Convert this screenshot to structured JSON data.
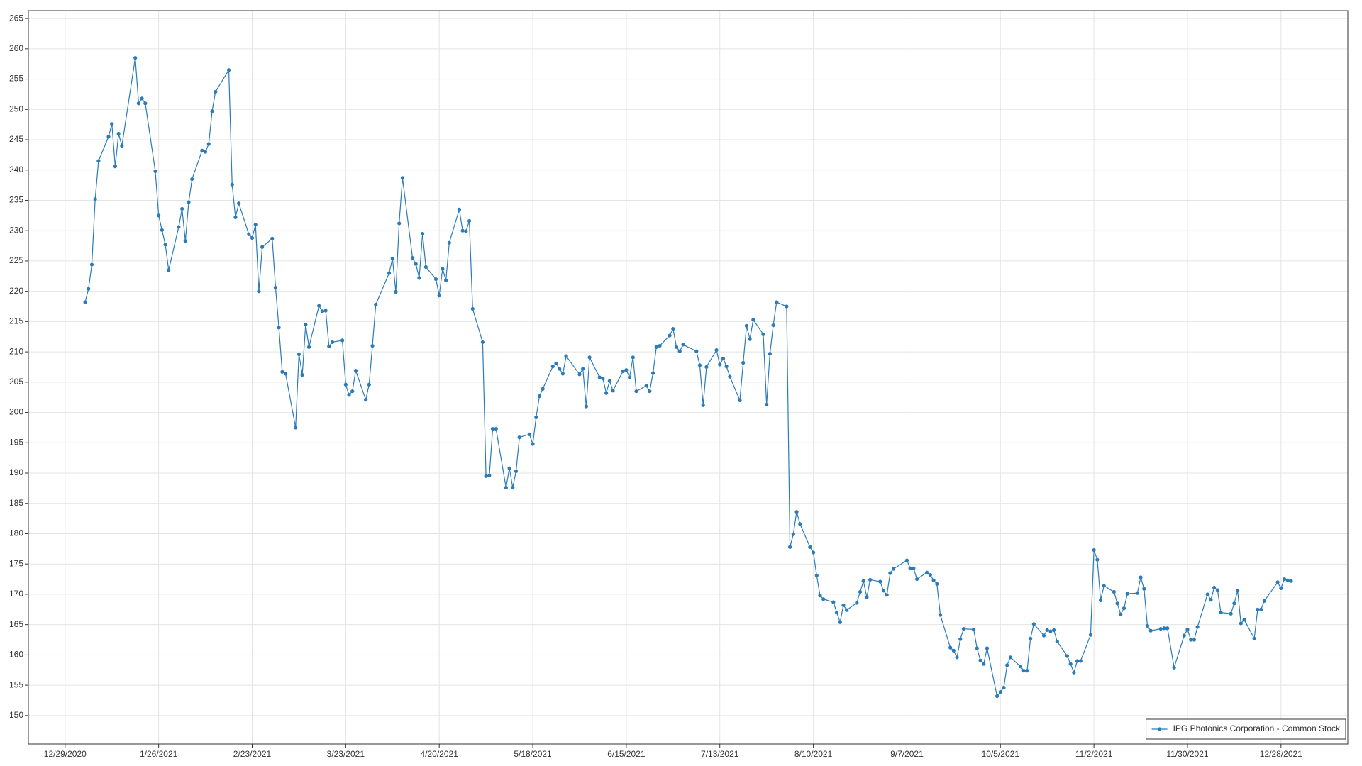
{
  "chart_data": {
    "type": "line",
    "x": [
      "1/4/2021",
      "1/5/2021",
      "1/6/2021",
      "1/7/2021",
      "1/8/2021",
      "1/11/2021",
      "1/12/2021",
      "1/13/2021",
      "1/14/2021",
      "1/15/2021",
      "1/19/2021",
      "1/20/2021",
      "1/21/2021",
      "1/22/2021",
      "1/25/2021",
      "1/26/2021",
      "1/27/2021",
      "1/28/2021",
      "1/29/2021",
      "2/1/2021",
      "2/2/2021",
      "2/3/2021",
      "2/4/2021",
      "2/5/2021",
      "2/8/2021",
      "2/9/2021",
      "2/10/2021",
      "2/11/2021",
      "2/12/2021",
      "2/16/2021",
      "2/17/2021",
      "2/18/2021",
      "2/19/2021",
      "2/22/2021",
      "2/23/2021",
      "2/24/2021",
      "2/25/2021",
      "2/26/2021",
      "3/1/2021",
      "3/2/2021",
      "3/3/2021",
      "3/4/2021",
      "3/5/2021",
      "3/8/2021",
      "3/9/2021",
      "3/10/2021",
      "3/11/2021",
      "3/12/2021",
      "3/15/2021",
      "3/16/2021",
      "3/17/2021",
      "3/18/2021",
      "3/19/2021",
      "3/22/2021",
      "3/23/2021",
      "3/24/2021",
      "3/25/2021",
      "3/26/2021",
      "3/29/2021",
      "3/30/2021",
      "3/31/2021",
      "4/1/2021",
      "4/5/2021",
      "4/6/2021",
      "4/7/2021",
      "4/8/2021",
      "4/9/2021",
      "4/12/2021",
      "4/13/2021",
      "4/14/2021",
      "4/15/2021",
      "4/16/2021",
      "4/19/2021",
      "4/20/2021",
      "4/21/2021",
      "4/22/2021",
      "4/23/2021",
      "4/26/2021",
      "4/27/2021",
      "4/28/2021",
      "4/29/2021",
      "4/30/2021",
      "5/3/2021",
      "5/4/2021",
      "5/5/2021",
      "5/6/2021",
      "5/7/2021",
      "5/10/2021",
      "5/11/2021",
      "5/12/2021",
      "5/13/2021",
      "5/14/2021",
      "5/17/2021",
      "5/18/2021",
      "5/19/2021",
      "5/20/2021",
      "5/21/2021",
      "5/24/2021",
      "5/25/2021",
      "5/26/2021",
      "5/27/2021",
      "5/28/2021",
      "6/1/2021",
      "6/2/2021",
      "6/3/2021",
      "6/4/2021",
      "6/7/2021",
      "6/8/2021",
      "6/9/2021",
      "6/10/2021",
      "6/11/2021",
      "6/14/2021",
      "6/15/2021",
      "6/16/2021",
      "6/17/2021",
      "6/18/2021",
      "6/21/2021",
      "6/22/2021",
      "6/23/2021",
      "6/24/2021",
      "6/25/2021",
      "6/28/2021",
      "6/29/2021",
      "6/30/2021",
      "7/1/2021",
      "7/2/2021",
      "7/6/2021",
      "7/7/2021",
      "7/8/2021",
      "7/9/2021",
      "7/12/2021",
      "7/13/2021",
      "7/14/2021",
      "7/15/2021",
      "7/16/2021",
      "7/19/2021",
      "7/20/2021",
      "7/21/2021",
      "7/22/2021",
      "7/23/2021",
      "7/26/2021",
      "7/27/2021",
      "7/28/2021",
      "7/29/2021",
      "7/30/2021",
      "8/2/2021",
      "8/3/2021",
      "8/4/2021",
      "8/5/2021",
      "8/6/2021",
      "8/9/2021",
      "8/10/2021",
      "8/11/2021",
      "8/12/2021",
      "8/13/2021",
      "8/16/2021",
      "8/17/2021",
      "8/18/2021",
      "8/19/2021",
      "8/20/2021",
      "8/23/2021",
      "8/24/2021",
      "8/25/2021",
      "8/26/2021",
      "8/27/2021",
      "8/30/2021",
      "8/31/2021",
      "9/1/2021",
      "9/2/2021",
      "9/3/2021",
      "9/7/2021",
      "9/8/2021",
      "9/9/2021",
      "9/10/2021",
      "9/13/2021",
      "9/14/2021",
      "9/15/2021",
      "9/16/2021",
      "9/17/2021",
      "9/20/2021",
      "9/21/2021",
      "9/22/2021",
      "9/23/2021",
      "9/24/2021",
      "9/27/2021",
      "9/28/2021",
      "9/29/2021",
      "9/30/2021",
      "10/1/2021",
      "10/4/2021",
      "10/5/2021",
      "10/6/2021",
      "10/7/2021",
      "10/8/2021",
      "10/11/2021",
      "10/12/2021",
      "10/13/2021",
      "10/14/2021",
      "10/15/2021",
      "10/18/2021",
      "10/19/2021",
      "10/20/2021",
      "10/21/2021",
      "10/22/2021",
      "10/25/2021",
      "10/26/2021",
      "10/27/2021",
      "10/28/2021",
      "10/29/2021",
      "11/1/2021",
      "11/2/2021",
      "11/3/2021",
      "11/4/2021",
      "11/5/2021",
      "11/8/2021",
      "11/9/2021",
      "11/10/2021",
      "11/11/2021",
      "11/12/2021",
      "11/15/2021",
      "11/16/2021",
      "11/17/2021",
      "11/18/2021",
      "11/19/2021",
      "11/22/2021",
      "11/23/2021",
      "11/24/2021",
      "11/26/2021",
      "11/29/2021",
      "11/30/2021",
      "12/1/2021",
      "12/2/2021",
      "12/3/2021",
      "12/6/2021",
      "12/7/2021",
      "12/8/2021",
      "12/9/2021",
      "12/10/2021",
      "12/13/2021",
      "12/14/2021",
      "12/15/2021",
      "12/16/2021",
      "12/17/2021",
      "12/20/2021",
      "12/21/2021",
      "12/22/2021",
      "12/23/2021",
      "12/27/2021",
      "12/28/2021",
      "12/29/2021",
      "12/30/2021",
      "12/31/2021"
    ],
    "series": [
      {
        "name": "IPG Photonics Corporation - Common Stock",
        "color": "#2b7bb9",
        "values": [
          218.2,
          220.4,
          224.4,
          235.2,
          241.5,
          245.5,
          247.6,
          240.6,
          246,
          244,
          258.5,
          251,
          251.8,
          251,
          239.8,
          232.5,
          230.1,
          227.7,
          223.5,
          230.6,
          233.6,
          228.3,
          234.7,
          238.5,
          243.2,
          243,
          244.3,
          249.7,
          252.9,
          256.5,
          237.6,
          232.2,
          234.5,
          229.4,
          228.8,
          231,
          220,
          227.3,
          228.7,
          220.6,
          214,
          206.7,
          206.4,
          197.5,
          209.6,
          206.2,
          214.5,
          210.8,
          217.6,
          216.7,
          216.8,
          210.9,
          211.6,
          211.9,
          204.6,
          202.9,
          203.5,
          206.9,
          202.1,
          204.6,
          211,
          217.8,
          223,
          225.4,
          219.9,
          231.2,
          238.7,
          225.5,
          224.5,
          222.2,
          229.5,
          224,
          222,
          219.3,
          223.7,
          221.8,
          228,
          233.5,
          230,
          229.9,
          231.6,
          217.1,
          211.6,
          189.5,
          189.6,
          197.3,
          197.3,
          187.6,
          190.8,
          187.6,
          190.3,
          195.9,
          196.4,
          194.8,
          199.2,
          202.7,
          203.9,
          207.6,
          208.1,
          207.2,
          206.4,
          209.3,
          206.3,
          207.2,
          201,
          209.1,
          205.8,
          205.6,
          203.2,
          205.2,
          203.6,
          206.8,
          207,
          205.8,
          209.1,
          203.5,
          204.4,
          203.5,
          206.5,
          210.8,
          211,
          212.7,
          213.8,
          210.8,
          210.1,
          211.2,
          210.1,
          207.8,
          201.2,
          207.5,
          210.3,
          207.9,
          208.9,
          207.6,
          205.9,
          202,
          208.2,
          214.3,
          212.1,
          215.3,
          212.9,
          201.3,
          209.7,
          214.4,
          218.2,
          217.5,
          177.8,
          179.9,
          183.6,
          181.6,
          177.8,
          176.9,
          173.1,
          169.8,
          169.2,
          168.7,
          167,
          165.4,
          168.2,
          167.4,
          168.6,
          170.4,
          172.2,
          169.5,
          172.4,
          172.1,
          170.6,
          169.9,
          173.5,
          174.2,
          175.6,
          174.3,
          174.3,
          172.5,
          173.6,
          173.2,
          172.3,
          171.7,
          166.6,
          161.2,
          160.7,
          159.6,
          162.6,
          164.3,
          164.2,
          161.1,
          159.1,
          158.5,
          161.1,
          153.2,
          153.9,
          154.6,
          158.3,
          159.6,
          158.1,
          157.4,
          157.4,
          162.7,
          165.1,
          163.2,
          164.1,
          163.9,
          164.1,
          162.2,
          159.8,
          158.5,
          157.1,
          159,
          159,
          163.3,
          177.3,
          175.7,
          169,
          171.4,
          170.4,
          168.5,
          166.7,
          167.7,
          170.1,
          170.2,
          172.8,
          170.9,
          164.8,
          164,
          164.3,
          164.4,
          164.4,
          157.9,
          163.2,
          164.2,
          162.5,
          162.5,
          164.6,
          170,
          169.1,
          171.1,
          170.7,
          167,
          166.8,
          168.5,
          170.6,
          165.2,
          165.8,
          162.7,
          167.5,
          167.5,
          168.9,
          172,
          171,
          172.5,
          172.3,
          172.2
        ]
      }
    ],
    "xlim": [
      "12/18/2020",
      "1/17/2022"
    ],
    "xticks": [
      "12/29/2020",
      "1/26/2021",
      "2/23/2021",
      "3/23/2021",
      "4/20/2021",
      "5/18/2021",
      "6/15/2021",
      "7/13/2021",
      "8/10/2021",
      "9/7/2021",
      "10/5/2021",
      "11/2/2021",
      "11/30/2021",
      "12/28/2021"
    ],
    "ylim": [
      145.3,
      266.3
    ],
    "yticks": [
      150,
      155,
      160,
      165,
      170,
      175,
      180,
      185,
      190,
      195,
      200,
      205,
      210,
      215,
      220,
      225,
      230,
      235,
      240,
      245,
      250,
      255,
      260,
      265
    ],
    "grid": true,
    "markers": true,
    "legend": "lower right"
  }
}
